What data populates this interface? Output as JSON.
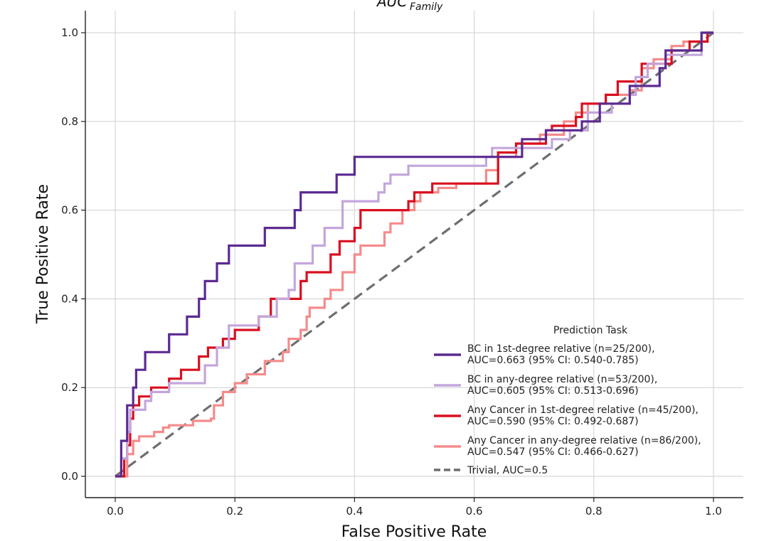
{
  "chart_data": {
    "type": "line",
    "title_main": "AUC",
    "title_sub": "Family",
    "xlabel": "False Positive Rate",
    "ylabel": "True Positive Rate",
    "xlim": [
      -0.05,
      1.05
    ],
    "ylim": [
      -0.05,
      1.03
    ],
    "xticks": [
      0.0,
      0.2,
      0.4,
      0.6,
      0.8,
      1.0
    ],
    "yticks": [
      0.0,
      0.2,
      0.4,
      0.6,
      0.8,
      1.0
    ],
    "xtick_labels": [
      "0.0",
      "0.2",
      "0.4",
      "0.6",
      "0.8",
      "1.0"
    ],
    "ytick_labels": [
      "0.0",
      "0.2",
      "0.4",
      "0.6",
      "0.8",
      "1.0"
    ],
    "grid": true,
    "legend_title": "Prediction Task",
    "legend_position": "lower-right",
    "series": [
      {
        "name_line1": "BC in 1st-degree relative (n=25/200),",
        "name_line2": "AUC=0.663 (95% CI: 0.540-0.785)",
        "color": "#5b2a91",
        "points": [
          [
            0,
            0
          ],
          [
            0.01,
            0
          ],
          [
            0.01,
            0.08
          ],
          [
            0.02,
            0.08
          ],
          [
            0.02,
            0.16
          ],
          [
            0.03,
            0.16
          ],
          [
            0.03,
            0.2
          ],
          [
            0.035,
            0.2
          ],
          [
            0.035,
            0.24
          ],
          [
            0.05,
            0.24
          ],
          [
            0.05,
            0.28
          ],
          [
            0.09,
            0.28
          ],
          [
            0.09,
            0.32
          ],
          [
            0.12,
            0.32
          ],
          [
            0.12,
            0.36
          ],
          [
            0.14,
            0.36
          ],
          [
            0.14,
            0.4
          ],
          [
            0.15,
            0.4
          ],
          [
            0.15,
            0.44
          ],
          [
            0.17,
            0.44
          ],
          [
            0.17,
            0.48
          ],
          [
            0.19,
            0.48
          ],
          [
            0.19,
            0.52
          ],
          [
            0.25,
            0.52
          ],
          [
            0.25,
            0.56
          ],
          [
            0.3,
            0.56
          ],
          [
            0.3,
            0.6
          ],
          [
            0.31,
            0.6
          ],
          [
            0.31,
            0.64
          ],
          [
            0.37,
            0.64
          ],
          [
            0.37,
            0.68
          ],
          [
            0.4,
            0.68
          ],
          [
            0.4,
            0.72
          ],
          [
            0.68,
            0.72
          ],
          [
            0.68,
            0.76
          ],
          [
            0.72,
            0.76
          ],
          [
            0.72,
            0.78
          ],
          [
            0.78,
            0.78
          ],
          [
            0.78,
            0.8
          ],
          [
            0.81,
            0.8
          ],
          [
            0.81,
            0.84
          ],
          [
            0.86,
            0.84
          ],
          [
            0.86,
            0.88
          ],
          [
            0.91,
            0.88
          ],
          [
            0.91,
            0.92
          ],
          [
            0.92,
            0.92
          ],
          [
            0.92,
            0.96
          ],
          [
            0.98,
            0.96
          ],
          [
            0.98,
            1.0
          ],
          [
            1.0,
            1.0
          ]
        ]
      },
      {
        "name_line1": "BC in any-degree relative (n=53/200),",
        "name_line2": "AUC=0.605 (95% CI: 0.513-0.696)",
        "color": "#c3a6dc",
        "points": [
          [
            0,
            0
          ],
          [
            0.01,
            0
          ],
          [
            0.01,
            0.04
          ],
          [
            0.02,
            0.04
          ],
          [
            0.02,
            0.1
          ],
          [
            0.025,
            0.1
          ],
          [
            0.025,
            0.15
          ],
          [
            0.05,
            0.15
          ],
          [
            0.05,
            0.17
          ],
          [
            0.06,
            0.17
          ],
          [
            0.06,
            0.19
          ],
          [
            0.09,
            0.19
          ],
          [
            0.09,
            0.21
          ],
          [
            0.15,
            0.21
          ],
          [
            0.15,
            0.25
          ],
          [
            0.17,
            0.25
          ],
          [
            0.17,
            0.29
          ],
          [
            0.19,
            0.29
          ],
          [
            0.19,
            0.34
          ],
          [
            0.24,
            0.34
          ],
          [
            0.24,
            0.36
          ],
          [
            0.27,
            0.36
          ],
          [
            0.27,
            0.4
          ],
          [
            0.29,
            0.4
          ],
          [
            0.29,
            0.42
          ],
          [
            0.3,
            0.42
          ],
          [
            0.3,
            0.48
          ],
          [
            0.33,
            0.48
          ],
          [
            0.33,
            0.52
          ],
          [
            0.35,
            0.52
          ],
          [
            0.35,
            0.56
          ],
          [
            0.38,
            0.56
          ],
          [
            0.38,
            0.62
          ],
          [
            0.44,
            0.62
          ],
          [
            0.44,
            0.64
          ],
          [
            0.45,
            0.64
          ],
          [
            0.45,
            0.66
          ],
          [
            0.46,
            0.66
          ],
          [
            0.46,
            0.68
          ],
          [
            0.49,
            0.68
          ],
          [
            0.49,
            0.7
          ],
          [
            0.62,
            0.7
          ],
          [
            0.62,
            0.72
          ],
          [
            0.63,
            0.72
          ],
          [
            0.63,
            0.74
          ],
          [
            0.73,
            0.74
          ],
          [
            0.73,
            0.76
          ],
          [
            0.76,
            0.76
          ],
          [
            0.76,
            0.78
          ],
          [
            0.79,
            0.78
          ],
          [
            0.79,
            0.82
          ],
          [
            0.83,
            0.82
          ],
          [
            0.83,
            0.84
          ],
          [
            0.86,
            0.84
          ],
          [
            0.86,
            0.86
          ],
          [
            0.87,
            0.86
          ],
          [
            0.87,
            0.9
          ],
          [
            0.89,
            0.9
          ],
          [
            0.89,
            0.93
          ],
          [
            0.92,
            0.93
          ],
          [
            0.92,
            0.95
          ],
          [
            0.98,
            0.95
          ],
          [
            0.98,
            1.0
          ],
          [
            1.0,
            1.0
          ]
        ]
      },
      {
        "name_line1": "Any Cancer in 1st-degree relative (n=45/200),",
        "name_line2": "AUC=0.590 (95% CI: 0.492-0.687)",
        "color": "#d90f1f",
        "points": [
          [
            0,
            0
          ],
          [
            0.015,
            0
          ],
          [
            0.015,
            0.04
          ],
          [
            0.02,
            0.04
          ],
          [
            0.02,
            0.07
          ],
          [
            0.025,
            0.07
          ],
          [
            0.025,
            0.13
          ],
          [
            0.03,
            0.13
          ],
          [
            0.03,
            0.16
          ],
          [
            0.04,
            0.16
          ],
          [
            0.04,
            0.18
          ],
          [
            0.06,
            0.18
          ],
          [
            0.06,
            0.2
          ],
          [
            0.09,
            0.2
          ],
          [
            0.09,
            0.22
          ],
          [
            0.11,
            0.22
          ],
          [
            0.11,
            0.24
          ],
          [
            0.14,
            0.24
          ],
          [
            0.14,
            0.27
          ],
          [
            0.155,
            0.27
          ],
          [
            0.155,
            0.29
          ],
          [
            0.18,
            0.29
          ],
          [
            0.18,
            0.31
          ],
          [
            0.2,
            0.31
          ],
          [
            0.2,
            0.33
          ],
          [
            0.24,
            0.33
          ],
          [
            0.24,
            0.36
          ],
          [
            0.26,
            0.36
          ],
          [
            0.26,
            0.4
          ],
          [
            0.31,
            0.4
          ],
          [
            0.31,
            0.44
          ],
          [
            0.32,
            0.44
          ],
          [
            0.32,
            0.46
          ],
          [
            0.36,
            0.46
          ],
          [
            0.36,
            0.5
          ],
          [
            0.375,
            0.5
          ],
          [
            0.375,
            0.53
          ],
          [
            0.4,
            0.53
          ],
          [
            0.4,
            0.56
          ],
          [
            0.41,
            0.56
          ],
          [
            0.41,
            0.6
          ],
          [
            0.49,
            0.6
          ],
          [
            0.49,
            0.62
          ],
          [
            0.5,
            0.62
          ],
          [
            0.5,
            0.64
          ],
          [
            0.53,
            0.64
          ],
          [
            0.53,
            0.66
          ],
          [
            0.64,
            0.66
          ],
          [
            0.64,
            0.73
          ],
          [
            0.67,
            0.73
          ],
          [
            0.67,
            0.75
          ],
          [
            0.72,
            0.75
          ],
          [
            0.72,
            0.78
          ],
          [
            0.73,
            0.78
          ],
          [
            0.73,
            0.79
          ],
          [
            0.77,
            0.79
          ],
          [
            0.77,
            0.81
          ],
          [
            0.78,
            0.81
          ],
          [
            0.78,
            0.84
          ],
          [
            0.82,
            0.84
          ],
          [
            0.82,
            0.86
          ],
          [
            0.84,
            0.86
          ],
          [
            0.84,
            0.89
          ],
          [
            0.88,
            0.89
          ],
          [
            0.88,
            0.93
          ],
          [
            0.93,
            0.93
          ],
          [
            0.93,
            0.96
          ],
          [
            0.96,
            0.96
          ],
          [
            0.96,
            0.98
          ],
          [
            0.99,
            0.98
          ],
          [
            0.99,
            1.0
          ],
          [
            1.0,
            1.0
          ]
        ]
      },
      {
        "name_line1": "Any Cancer in any-degree relative (n=86/200),",
        "name_line2": "AUC=0.547 (95% CI: 0.466-0.627)",
        "color": "#f58b8b",
        "points": [
          [
            0,
            0
          ],
          [
            0.02,
            0
          ],
          [
            0.02,
            0.05
          ],
          [
            0.03,
            0.05
          ],
          [
            0.03,
            0.08
          ],
          [
            0.04,
            0.08
          ],
          [
            0.04,
            0.09
          ],
          [
            0.065,
            0.09
          ],
          [
            0.065,
            0.1
          ],
          [
            0.08,
            0.1
          ],
          [
            0.08,
            0.11
          ],
          [
            0.09,
            0.11
          ],
          [
            0.09,
            0.115
          ],
          [
            0.13,
            0.115
          ],
          [
            0.13,
            0.125
          ],
          [
            0.16,
            0.125
          ],
          [
            0.16,
            0.13
          ],
          [
            0.165,
            0.13
          ],
          [
            0.165,
            0.16
          ],
          [
            0.18,
            0.16
          ],
          [
            0.18,
            0.19
          ],
          [
            0.2,
            0.19
          ],
          [
            0.2,
            0.21
          ],
          [
            0.22,
            0.21
          ],
          [
            0.22,
            0.23
          ],
          [
            0.25,
            0.23
          ],
          [
            0.25,
            0.26
          ],
          [
            0.28,
            0.26
          ],
          [
            0.28,
            0.28
          ],
          [
            0.29,
            0.28
          ],
          [
            0.29,
            0.31
          ],
          [
            0.31,
            0.31
          ],
          [
            0.31,
            0.33
          ],
          [
            0.32,
            0.33
          ],
          [
            0.32,
            0.36
          ],
          [
            0.325,
            0.36
          ],
          [
            0.325,
            0.38
          ],
          [
            0.35,
            0.38
          ],
          [
            0.35,
            0.4
          ],
          [
            0.36,
            0.4
          ],
          [
            0.36,
            0.42
          ],
          [
            0.38,
            0.42
          ],
          [
            0.38,
            0.46
          ],
          [
            0.4,
            0.46
          ],
          [
            0.4,
            0.5
          ],
          [
            0.41,
            0.5
          ],
          [
            0.41,
            0.52
          ],
          [
            0.45,
            0.52
          ],
          [
            0.45,
            0.55
          ],
          [
            0.46,
            0.55
          ],
          [
            0.46,
            0.57
          ],
          [
            0.48,
            0.57
          ],
          [
            0.48,
            0.6
          ],
          [
            0.5,
            0.6
          ],
          [
            0.5,
            0.62
          ],
          [
            0.51,
            0.62
          ],
          [
            0.51,
            0.64
          ],
          [
            0.54,
            0.64
          ],
          [
            0.54,
            0.65
          ],
          [
            0.57,
            0.65
          ],
          [
            0.57,
            0.66
          ],
          [
            0.62,
            0.66
          ],
          [
            0.62,
            0.69
          ],
          [
            0.64,
            0.69
          ],
          [
            0.64,
            0.72
          ],
          [
            0.67,
            0.72
          ],
          [
            0.67,
            0.75
          ],
          [
            0.71,
            0.75
          ],
          [
            0.71,
            0.77
          ],
          [
            0.75,
            0.77
          ],
          [
            0.75,
            0.8
          ],
          [
            0.77,
            0.8
          ],
          [
            0.77,
            0.82
          ],
          [
            0.79,
            0.82
          ],
          [
            0.79,
            0.84
          ],
          [
            0.82,
            0.84
          ],
          [
            0.82,
            0.86
          ],
          [
            0.86,
            0.86
          ],
          [
            0.86,
            0.87
          ],
          [
            0.88,
            0.87
          ],
          [
            0.88,
            0.92
          ],
          [
            0.9,
            0.92
          ],
          [
            0.9,
            0.94
          ],
          [
            0.93,
            0.94
          ],
          [
            0.93,
            0.97
          ],
          [
            0.95,
            0.97
          ],
          [
            0.95,
            0.98
          ],
          [
            0.99,
            0.98
          ],
          [
            0.99,
            1.0
          ],
          [
            1.0,
            1.0
          ]
        ]
      },
      {
        "name_line1": "Trivial, AUC=0.5",
        "name_line2": "",
        "color": "#6e6e6e",
        "dashed": true,
        "points": [
          [
            0,
            0
          ],
          [
            1.0,
            1.0
          ]
        ]
      }
    ]
  }
}
